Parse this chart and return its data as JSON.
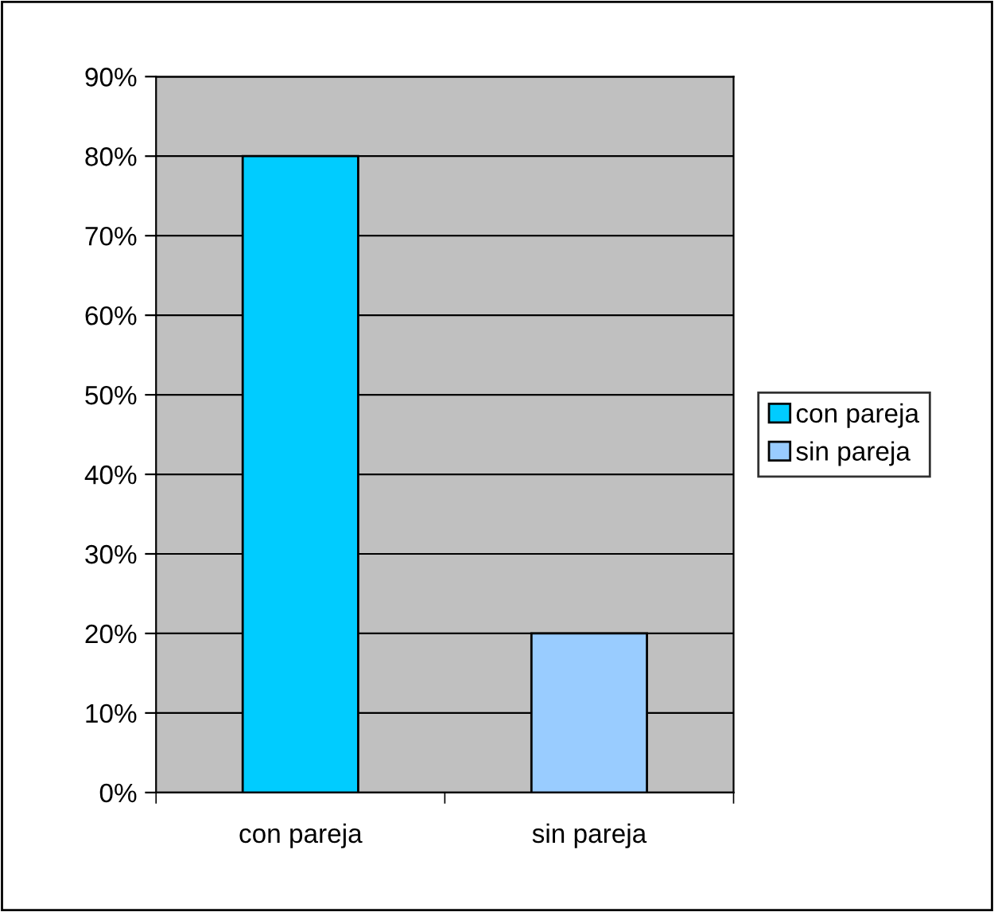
{
  "chart_data": {
    "type": "bar",
    "categories": [
      "con pareja",
      "sin pareja"
    ],
    "series": [
      {
        "name": "con pareja",
        "color": "#00ccff",
        "values": [
          80,
          null
        ]
      },
      {
        "name": "sin pareja",
        "color": "#99ccff",
        "values": [
          null,
          20
        ]
      }
    ],
    "ylim": [
      0,
      90
    ],
    "yticks": [
      {
        "value": 0,
        "label": "0%"
      },
      {
        "value": 10,
        "label": "10%"
      },
      {
        "value": 20,
        "label": "20%"
      },
      {
        "value": 30,
        "label": "30%"
      },
      {
        "value": 40,
        "label": "40%"
      },
      {
        "value": 50,
        "label": "50%"
      },
      {
        "value": 60,
        "label": "60%"
      },
      {
        "value": 70,
        "label": "70%"
      },
      {
        "value": 80,
        "label": "80%"
      },
      {
        "value": 90,
        "label": "90%"
      }
    ],
    "grid": "y",
    "legend": "right"
  }
}
